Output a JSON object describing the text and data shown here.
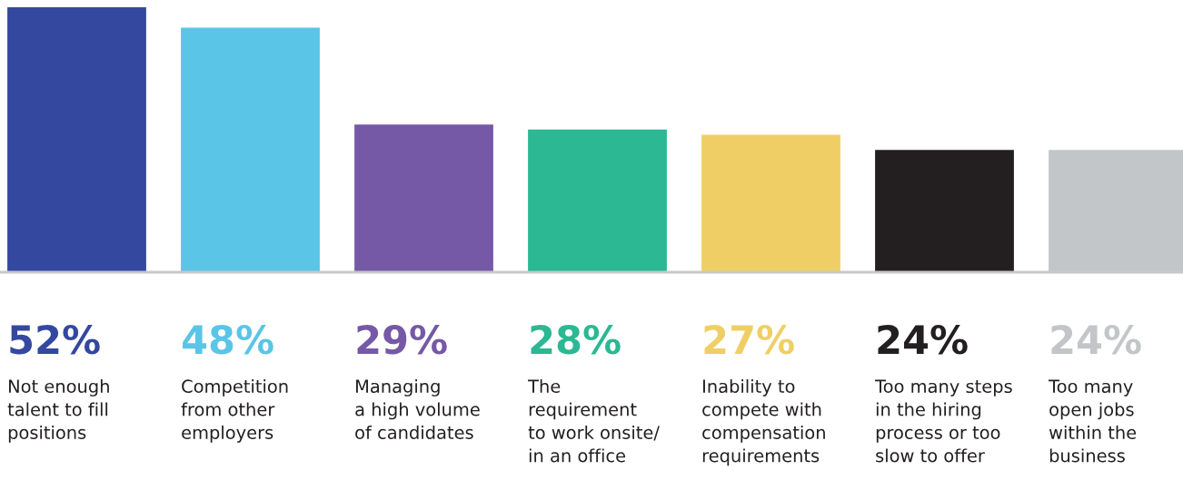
{
  "chart_data": {
    "type": "bar",
    "categories": [
      "Not enough\ntalent to fill\npositions",
      "Competition\nfrom other\nemployers",
      "Managing\na high volume\nof candidates",
      "The\nrequirement\nto work onsite/\nin an office",
      "Inability to\ncompete with\ncompensation\nrequirements",
      "Too many steps\nin the hiring\nprocess or too\nslow to offer",
      "Too many\nopen jobs\nwithin the\nbusiness"
    ],
    "values": [
      52,
      48,
      29,
      28,
      27,
      24,
      24
    ],
    "value_labels": [
      "52%",
      "48%",
      "29%",
      "28%",
      "27%",
      "24%",
      "24%"
    ],
    "colors": [
      "#3448a0",
      "#5ac5e6",
      "#7659a6",
      "#2bb892",
      "#efcf65",
      "#231f20",
      "#c3c6c8"
    ]
  }
}
